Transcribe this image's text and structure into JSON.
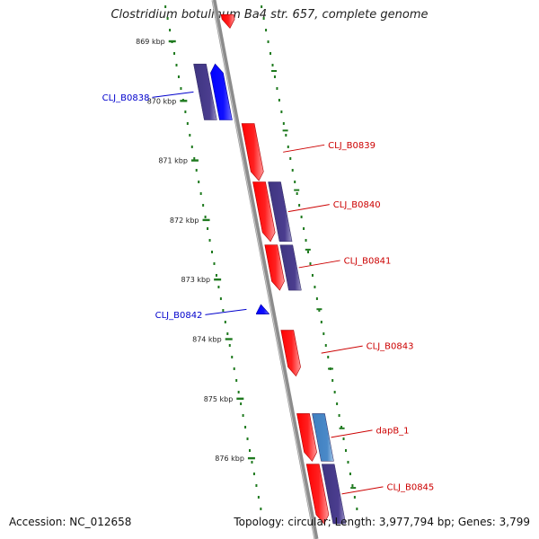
{
  "header": {
    "title": "Clostridium botulinum Ba4 str. 657, complete genome"
  },
  "footer": {
    "accession": "Accession: NC_012658",
    "topology": "Topology: circular; Length: 3,977,794 bp; Genes: 3,799"
  },
  "colors": {
    "backbone": "#8c8c8c",
    "forward_cds": "#ff0000",
    "reverse_cds": "#0000ff",
    "forward_label": "#cc0000",
    "reverse_label": "#0000cc",
    "ruler_dots": "#1f7a1f",
    "pair_feature": "#4b3d8f",
    "pair_feature_light": "#4a89c8"
  },
  "ticks": [
    {
      "kbp": 869,
      "label": "869 kbp"
    },
    {
      "kbp": 870,
      "label": "870 kbp"
    },
    {
      "kbp": 871,
      "label": "871 kbp"
    },
    {
      "kbp": 872,
      "label": "872 kbp"
    },
    {
      "kbp": 873,
      "label": "873 kbp"
    },
    {
      "kbp": 874,
      "label": "874 kbp"
    },
    {
      "kbp": 875,
      "label": "875 kbp"
    },
    {
      "kbp": 876,
      "label": "876 kbp"
    }
  ],
  "features": [
    {
      "name": "CLJ_B0838",
      "strand": "reverse",
      "start_kbp": 869.38,
      "end_kbp": 870.32,
      "paired": "dark"
    },
    {
      "name": "",
      "strand": "forward",
      "start_kbp": 868.55,
      "end_kbp": 868.78,
      "paired": ""
    },
    {
      "name": "CLJ_B0839",
      "strand": "forward",
      "start_kbp": 870.38,
      "end_kbp": 871.34,
      "paired": ""
    },
    {
      "name": "CLJ_B0840",
      "strand": "forward",
      "start_kbp": 871.36,
      "end_kbp": 872.36,
      "paired": "dark"
    },
    {
      "name": "CLJ_B0841",
      "strand": "forward",
      "start_kbp": 872.42,
      "end_kbp": 873.18,
      "paired": "dark"
    },
    {
      "name": "CLJ_B0842",
      "strand": "reverse",
      "start_kbp": 873.42,
      "end_kbp": 873.58,
      "paired": ""
    },
    {
      "name": "CLJ_B0843",
      "strand": "forward",
      "start_kbp": 873.85,
      "end_kbp": 874.62,
      "paired": ""
    },
    {
      "name": "dapB_1",
      "strand": "forward",
      "start_kbp": 875.25,
      "end_kbp": 876.05,
      "paired": "light"
    },
    {
      "name": "CLJ_B0845",
      "strand": "forward",
      "start_kbp": 876.1,
      "end_kbp": 877.1,
      "paired": "dark"
    }
  ]
}
